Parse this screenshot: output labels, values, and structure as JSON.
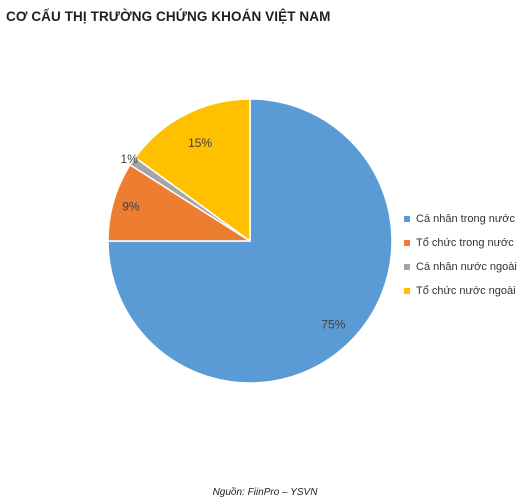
{
  "title": "CƠ CẤU THỊ TRƯỜNG CHỨNG KHOÁN VIỆT NAM",
  "source": "Nguồn: FiinPro – YSVN",
  "chart_data": {
    "type": "pie",
    "title": "CƠ CẤU THỊ TRƯỜNG CHỨNG KHOÁN VIỆT NAM",
    "legend_position": "right",
    "start_angle_deg": 0,
    "direction": "clockwise",
    "series": [
      {
        "name": "Cá nhân trong nước",
        "value": 75,
        "label": "75%",
        "color": "#5b9bd5"
      },
      {
        "name": "Tổ chức trong nước",
        "value": 9,
        "label": "9%",
        "color": "#ed7d31"
      },
      {
        "name": "Cá nhân nước ngoài",
        "value": 1,
        "label": "1%",
        "color": "#a5a5a5"
      },
      {
        "name": "Tổ chức nước ngoài",
        "value": 15,
        "label": "15%",
        "color": "#ffc000"
      }
    ]
  }
}
